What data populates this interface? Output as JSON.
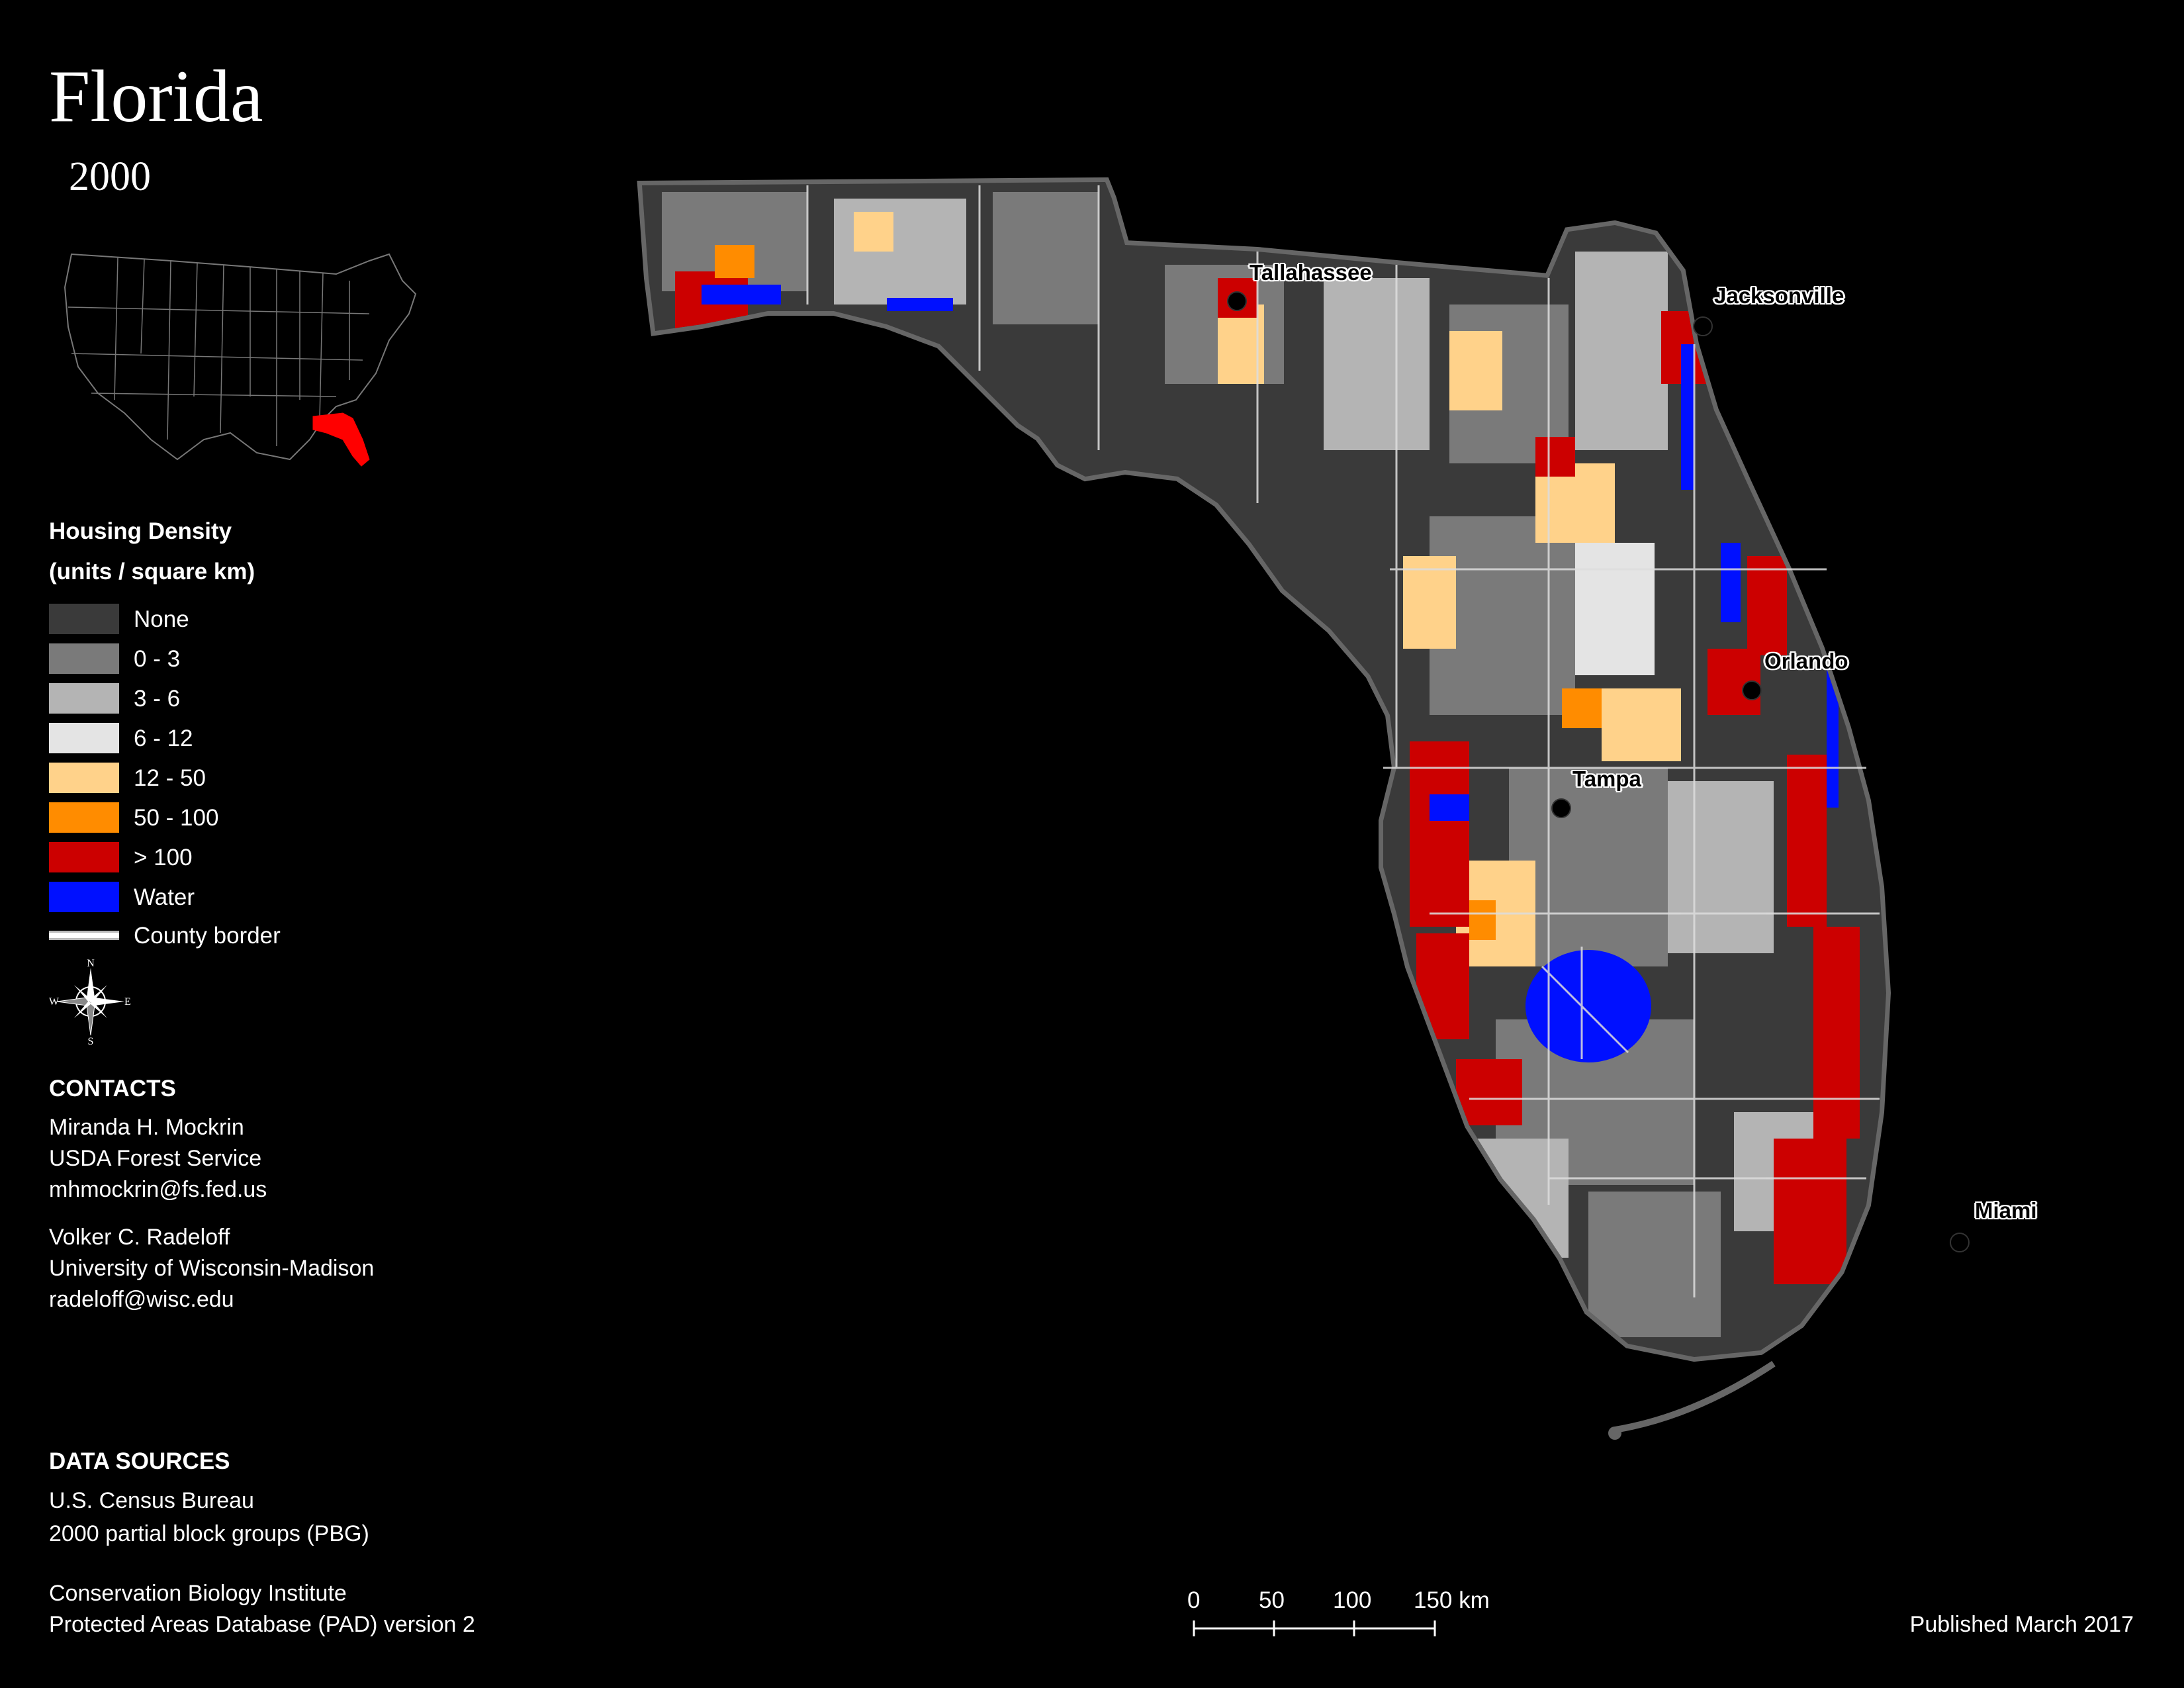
{
  "map": {
    "title": "Florida",
    "year": "2000"
  },
  "legend": {
    "heading_line1": "Housing Density",
    "heading_line2": "(units / square km)",
    "items": [
      {
        "label": "None",
        "color": "#3a3a3a"
      },
      {
        "label": "0 - 3",
        "color": "#7a7a7a"
      },
      {
        "label": "3 - 6",
        "color": "#b4b4b4"
      },
      {
        "label": "6 - 12",
        "color": "#e4e4e4"
      },
      {
        "label": "12 - 50",
        "color": "#ffd28a"
      },
      {
        "label": "50 - 100",
        "color": "#ff8c00"
      },
      {
        "label": "> 100",
        "color": "#cc0000"
      },
      {
        "label": "Water",
        "color": "#0010ff"
      }
    ],
    "county_border_label": "County border"
  },
  "compass": {
    "n": "N",
    "s": "S",
    "e": "E",
    "w": "W"
  },
  "contacts": {
    "heading": "CONTACTS",
    "people": [
      {
        "name": "Miranda H. Mockrin",
        "org": "USDA Forest Service",
        "email": "mhmockrin@fs.fed.us"
      },
      {
        "name": "Volker C. Radeloff",
        "org": "University of Wisconsin-Madison",
        "email": "radeloff@wisc.edu"
      }
    ]
  },
  "data_sources": {
    "heading": "DATA SOURCES",
    "lines": [
      "U.S. Census Bureau",
      "2000 partial block groups (PBG)",
      "Conservation Biology Institute",
      "Protected Areas Database (PAD) version 2"
    ]
  },
  "scale_bar": {
    "labels": [
      "0",
      "50",
      "100",
      "150 km"
    ]
  },
  "published": "Published March 2017",
  "cities": {
    "tallahassee": "Tallahassee",
    "jacksonville": "Jacksonville",
    "orlando": "Orlando",
    "tampa": "Tampa",
    "miami": "Miami"
  },
  "inset_highlight_color": "#ff0000"
}
